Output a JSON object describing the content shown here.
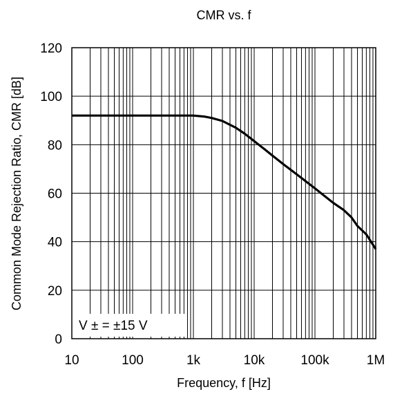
{
  "chart_data": {
    "type": "line",
    "title": "CMR vs. f",
    "xlabel": "Frequency, f [Hz]",
    "ylabel": "Common Mode Rejection Ratio, CMR [dB]",
    "x_scale": "log",
    "xlim": [
      10,
      1000000
    ],
    "ylim": [
      0,
      120
    ],
    "x_ticks": [
      10,
      100,
      1000,
      10000,
      100000,
      1000000
    ],
    "x_tick_labels": [
      "10",
      "100",
      "1k",
      "10k",
      "100k",
      "1M"
    ],
    "y_ticks": [
      0,
      20,
      40,
      60,
      80,
      100,
      120
    ],
    "y_tick_labels": [
      "0",
      "20",
      "40",
      "60",
      "80",
      "100",
      "120"
    ],
    "grid": true,
    "annotation": "V ± = ±15 V",
    "series": [
      {
        "x": [
          10,
          100,
          500,
          1000,
          1500,
          2000,
          3000,
          5000,
          7000,
          10000,
          15000,
          20000,
          30000,
          50000,
          100000,
          200000,
          300000,
          400000,
          500000,
          700000,
          1000000
        ],
        "y": [
          92,
          92,
          92,
          92,
          91.6,
          91,
          89.8,
          87,
          84.5,
          81.5,
          78,
          75.5,
          72,
          67.8,
          62,
          56,
          53,
          50,
          46.5,
          43,
          37
        ]
      }
    ]
  }
}
